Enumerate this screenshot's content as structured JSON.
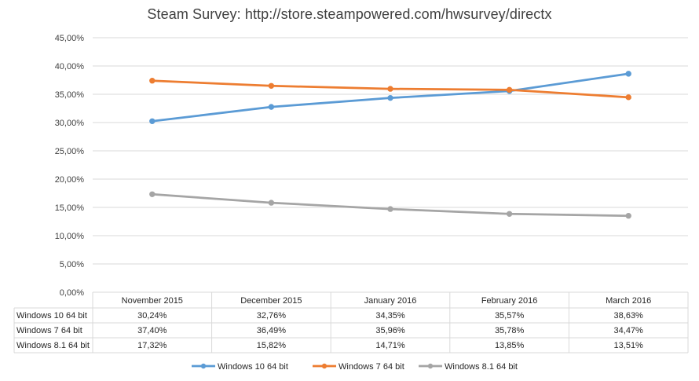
{
  "chart_data": {
    "type": "line",
    "title": "Steam Survey:  http://store.steampowered.com/hwsurvey/directx",
    "categories": [
      "November 2015",
      "December 2015",
      "January 2016",
      "February 2016",
      "March 2016"
    ],
    "y_tick_labels": [
      "0,00%",
      "5,00%",
      "10,00%",
      "15,00%",
      "20,00%",
      "25,00%",
      "30,00%",
      "35,00%",
      "40,00%",
      "45,00%"
    ],
    "ylim": [
      0,
      45
    ],
    "y_unit": "percent",
    "grid": true,
    "legend_position": "bottom",
    "data_table": true,
    "series": [
      {
        "name": "Windows 10 64 bit",
        "values": [
          30.24,
          32.76,
          34.35,
          35.57,
          38.63
        ],
        "labels": [
          "30,24%",
          "32,76%",
          "34,35%",
          "35,57%",
          "38,63%"
        ],
        "color": "#5B9BD5"
      },
      {
        "name": "Windows 7 64 bit",
        "values": [
          37.4,
          36.49,
          35.96,
          35.78,
          34.47
        ],
        "labels": [
          "37,40%",
          "36,49%",
          "35,96%",
          "35,78%",
          "34,47%"
        ],
        "color": "#ED7D31"
      },
      {
        "name": "Windows 8.1 64 bit",
        "values": [
          17.32,
          15.82,
          14.71,
          13.85,
          13.51
        ],
        "labels": [
          "17,32%",
          "15,82%",
          "14,71%",
          "13,85%",
          "13,51%"
        ],
        "color": "#A5A5A5"
      }
    ]
  }
}
